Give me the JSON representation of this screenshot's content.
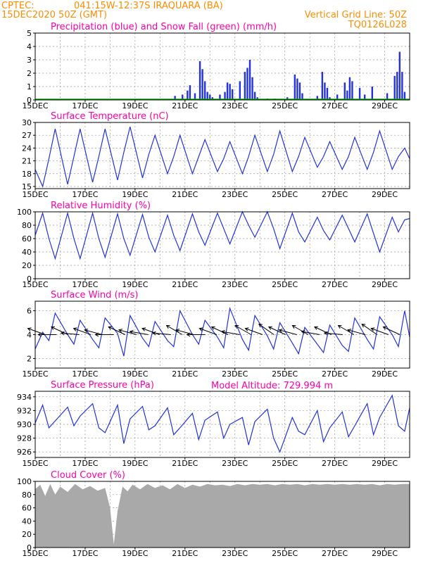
{
  "header": {
    "source": "CPTEC:",
    "location": "041:15W-12:37S  IRAQUARA (BA)",
    "date": "15DEC2020 50Z (GMT)",
    "grid_note": "Vertical Grid Line: 50Z",
    "run_code": "TQ0126L028",
    "model_altitude": "Model Altitude: 729.994 m"
  },
  "colors": {
    "header": "#ff8c00",
    "titles": "#ff00aa",
    "series": "#2233dd",
    "snow": "#00aa00",
    "cloud": "#a9a9a9"
  },
  "chart_data": [
    {
      "type": "bar",
      "title": "Precipitation (blue) and Snow Fall (green) (mm/h)",
      "x_tick_labels": [
        "15DEC",
        "17DEC",
        "19DEC",
        "21DEC",
        "23DEC",
        "25DEC",
        "27DEC",
        "29DEC"
      ],
      "xlim_days": [
        15,
        30
      ],
      "ylim": [
        0,
        5
      ],
      "y_ticks": [
        0,
        1,
        2,
        3,
        4,
        5
      ],
      "series": [
        {
          "values_x": [
            20.6,
            20.9,
            21.1,
            21.2,
            21.4,
            21.6,
            21.7,
            21.8,
            21.9,
            22.0,
            22.1,
            22.4,
            22.6,
            22.7,
            22.8,
            22.9,
            23.2,
            23.4,
            23.5,
            23.6,
            23.7,
            23.8,
            23.9,
            24.3,
            24.6,
            25.1,
            25.4,
            25.5,
            25.6,
            25.7,
            26.3,
            26.5,
            26.6,
            26.7,
            26.8,
            27.1,
            27.4,
            27.5,
            27.6,
            27.7,
            28.0,
            28.2,
            28.5,
            29.1,
            29.4,
            29.5,
            29.6,
            29.7,
            29.8
          ],
          "values_y": [
            0.3,
            0.4,
            0.7,
            1.1,
            0.5,
            2.9,
            2.3,
            1.4,
            0.6,
            0.4,
            0.2,
            0.4,
            0.6,
            1.3,
            1.2,
            0.8,
            1.4,
            2.1,
            2.4,
            3.0,
            1.7,
            0.6,
            0.2,
            0.1,
            0.1,
            0.2,
            1.9,
            1.6,
            1.3,
            0.5,
            0.3,
            2.1,
            1.3,
            0.9,
            0.2,
            0.4,
            1.3,
            0.7,
            1.7,
            1.4,
            0.9,
            0.4,
            1.0,
            0.5,
            1.8,
            2.1,
            3.6,
            2.1,
            0.6
          ]
        }
      ]
    },
    {
      "type": "line",
      "title": "Surface Temperature (nC)",
      "x_tick_labels": [
        "15DEC",
        "17DEC",
        "19DEC",
        "21DEC",
        "23DEC",
        "25DEC",
        "27DEC",
        "29DEC"
      ],
      "xlim_days": [
        15,
        30
      ],
      "ylim": [
        14.5,
        30
      ],
      "y_ticks": [
        15,
        18,
        21,
        24,
        27,
        30
      ],
      "series": [
        {
          "values_x": [
            15.0,
            15.3,
            15.55,
            15.8,
            16.3,
            16.55,
            16.8,
            17.3,
            17.55,
            17.8,
            18.3,
            18.55,
            18.8,
            19.3,
            19.55,
            19.8,
            20.3,
            20.55,
            20.8,
            21.3,
            21.55,
            21.8,
            22.3,
            22.55,
            22.8,
            23.3,
            23.55,
            23.8,
            24.3,
            24.55,
            24.8,
            25.3,
            25.55,
            25.8,
            26.3,
            26.55,
            26.8,
            27.3,
            27.55,
            27.8,
            28.3,
            28.55,
            28.8,
            29.3,
            29.55,
            29.8,
            30.0
          ],
          "values_y": [
            19,
            15,
            21.5,
            28.5,
            15.5,
            22,
            28.5,
            16,
            22,
            28.5,
            16.5,
            23,
            29,
            17,
            22.5,
            27,
            18,
            22,
            27,
            18,
            22,
            26,
            18.5,
            21.5,
            25.5,
            18,
            22,
            27,
            18.5,
            22.5,
            28,
            18.5,
            22,
            26.5,
            19.5,
            22,
            25.5,
            19,
            22,
            26.5,
            19,
            23,
            28,
            19,
            22,
            24,
            21.5
          ]
        }
      ]
    },
    {
      "type": "line",
      "title": "Relative Humidity (%)",
      "x_tick_labels": [
        "15DEC",
        "17DEC",
        "19DEC",
        "21DEC",
        "23DEC",
        "25DEC",
        "27DEC",
        "29DEC"
      ],
      "xlim_days": [
        15,
        30
      ],
      "ylim": [
        0,
        100
      ],
      "y_ticks": [
        0,
        20,
        40,
        60,
        80,
        100
      ],
      "series": [
        {
          "values_x": [
            15.0,
            15.3,
            15.55,
            15.8,
            16.3,
            16.55,
            16.8,
            17.3,
            17.55,
            17.8,
            18.3,
            18.55,
            18.8,
            19.3,
            19.55,
            19.8,
            20.3,
            20.55,
            20.8,
            21.3,
            21.55,
            21.8,
            22.3,
            22.55,
            22.8,
            23.3,
            23.55,
            23.8,
            24.3,
            24.55,
            24.8,
            25.3,
            25.55,
            25.8,
            26.3,
            26.55,
            26.8,
            27.3,
            27.55,
            27.8,
            28.3,
            28.55,
            28.8,
            29.3,
            29.55,
            29.8,
            30.0
          ],
          "values_y": [
            65,
            98,
            60,
            30,
            98,
            60,
            30,
            98,
            60,
            32,
            97,
            60,
            35,
            96,
            62,
            40,
            95,
            65,
            42,
            97,
            70,
            50,
            98,
            75,
            52,
            100,
            80,
            62,
            100,
            75,
            45,
            98,
            70,
            55,
            92,
            72,
            58,
            95,
            75,
            55,
            97,
            68,
            40,
            92,
            70,
            88,
            90
          ]
        }
      ]
    },
    {
      "type": "line",
      "title": "Surface Wind (m/s)",
      "x_tick_labels": [
        "15DEC",
        "17DEC",
        "19DEC",
        "21DEC",
        "23DEC",
        "25DEC",
        "27DEC",
        "29DEC"
      ],
      "xlim_days": [
        15,
        30
      ],
      "ylim": [
        1.2,
        6.8
      ],
      "y_ticks": [
        2,
        4,
        6
      ],
      "series": [
        {
          "values_x": [
            15.0,
            15.3,
            15.55,
            15.8,
            16.3,
            16.55,
            16.8,
            17.3,
            17.55,
            17.8,
            18.3,
            18.55,
            18.8,
            19.3,
            19.55,
            19.8,
            20.3,
            20.55,
            20.8,
            21.3,
            21.55,
            21.8,
            22.3,
            22.55,
            22.8,
            23.3,
            23.55,
            23.8,
            24.3,
            24.55,
            24.8,
            25.3,
            25.55,
            25.8,
            26.3,
            26.55,
            26.8,
            27.3,
            27.55,
            27.8,
            28.3,
            28.55,
            28.8,
            29.3,
            29.55,
            29.8,
            30.0
          ],
          "values_y": [
            2.8,
            4.2,
            3.5,
            5.8,
            4.0,
            3.2,
            5.2,
            3.6,
            2.9,
            5.4,
            4.1,
            2.2,
            5.6,
            3.7,
            3.0,
            5.1,
            3.5,
            3.0,
            6.0,
            4.0,
            3.2,
            5.2,
            3.8,
            2.9,
            6.2,
            3.6,
            2.7,
            5.6,
            3.9,
            2.8,
            5.0,
            3.3,
            2.4,
            4.6,
            3.2,
            2.5,
            4.8,
            3.1,
            2.6,
            5.4,
            3.6,
            2.8,
            5.5,
            4.0,
            3.0,
            6.0,
            3.8
          ]
        }
      ],
      "wind_vectors_dir_deg": [
        250,
        270,
        245,
        265,
        250,
        255,
        270,
        245,
        255,
        260,
        250,
        265,
        240,
        255,
        270,
        250,
        245,
        260,
        240,
        250,
        235,
        245,
        255,
        240,
        260,
        245,
        265,
        240,
        255,
        235,
        250,
        245
      ]
    },
    {
      "type": "line",
      "title": "Surface Pressure (hPa)",
      "x_tick_labels": [
        "15DEC",
        "17DEC",
        "19DEC",
        "21DEC",
        "23DEC",
        "25DEC",
        "27DEC",
        "29DEC"
      ],
      "xlim_days": [
        15,
        30
      ],
      "ylim": [
        925.2,
        934.8
      ],
      "y_ticks": [
        926,
        928,
        930,
        932,
        934
      ],
      "series": [
        {
          "values_x": [
            15.0,
            15.3,
            15.55,
            15.8,
            16.3,
            16.55,
            16.8,
            17.3,
            17.55,
            17.8,
            18.3,
            18.55,
            18.8,
            19.3,
            19.55,
            19.8,
            20.3,
            20.55,
            20.8,
            21.3,
            21.55,
            21.8,
            22.3,
            22.55,
            22.8,
            23.3,
            23.55,
            23.8,
            24.3,
            24.55,
            24.8,
            25.3,
            25.55,
            25.8,
            26.3,
            26.55,
            26.8,
            27.3,
            27.55,
            27.8,
            28.3,
            28.55,
            28.8,
            29.3,
            29.55,
            29.8,
            30.0
          ],
          "values_y": [
            930.2,
            932.8,
            929.5,
            930.5,
            932.5,
            929.8,
            931.2,
            933.0,
            929.5,
            928.8,
            932.8,
            927.2,
            930.8,
            932.6,
            929.2,
            929.8,
            932.4,
            928.5,
            929.5,
            931.6,
            927.8,
            930.6,
            931.8,
            928.0,
            930.0,
            931.0,
            927.0,
            930.4,
            932.2,
            928.0,
            926.0,
            931.0,
            929.0,
            928.5,
            932.0,
            927.5,
            929.5,
            931.8,
            928.2,
            929.8,
            933.0,
            928.5,
            931.0,
            934.2,
            929.8,
            929.0,
            932.4
          ]
        }
      ]
    },
    {
      "type": "area",
      "title": "Cloud Cover (%)",
      "x_tick_labels": [
        "15DEC",
        "17DEC",
        "19DEC",
        "21DEC",
        "23DEC",
        "25DEC",
        "27DEC",
        "29DEC"
      ],
      "xlim_days": [
        15,
        30
      ],
      "ylim": [
        0,
        100
      ],
      "y_ticks": [
        0,
        20,
        40,
        60,
        80,
        100
      ],
      "series": [
        {
          "values_x": [
            15.0,
            15.2,
            15.4,
            15.6,
            15.8,
            16.0,
            16.3,
            16.6,
            16.9,
            17.2,
            17.5,
            17.8,
            18.0,
            18.15,
            18.3,
            18.5,
            18.7,
            18.9,
            19.2,
            19.5,
            19.8,
            20.1,
            20.4,
            20.7,
            21.0,
            21.3,
            21.6,
            21.9,
            22.2,
            22.5,
            22.8,
            23.1,
            23.4,
            23.7,
            24.0,
            24.3,
            24.6,
            24.9,
            25.2,
            25.5,
            25.8,
            26.1,
            26.4,
            26.7,
            27.0,
            27.3,
            27.6,
            27.9,
            28.2,
            28.5,
            28.8,
            29.1,
            29.4,
            29.7,
            30.0
          ],
          "values_y": [
            88,
            95,
            78,
            96,
            80,
            92,
            84,
            96,
            88,
            93,
            86,
            90,
            60,
            5,
            55,
            92,
            85,
            95,
            88,
            96,
            90,
            94,
            88,
            96,
            90,
            95,
            92,
            96,
            94,
            95,
            93,
            96,
            94,
            96,
            95,
            96,
            94,
            96,
            95,
            96,
            94,
            96,
            95,
            96,
            95,
            96,
            95,
            96,
            95,
            96,
            94,
            96,
            95,
            96,
            96
          ]
        }
      ]
    }
  ]
}
